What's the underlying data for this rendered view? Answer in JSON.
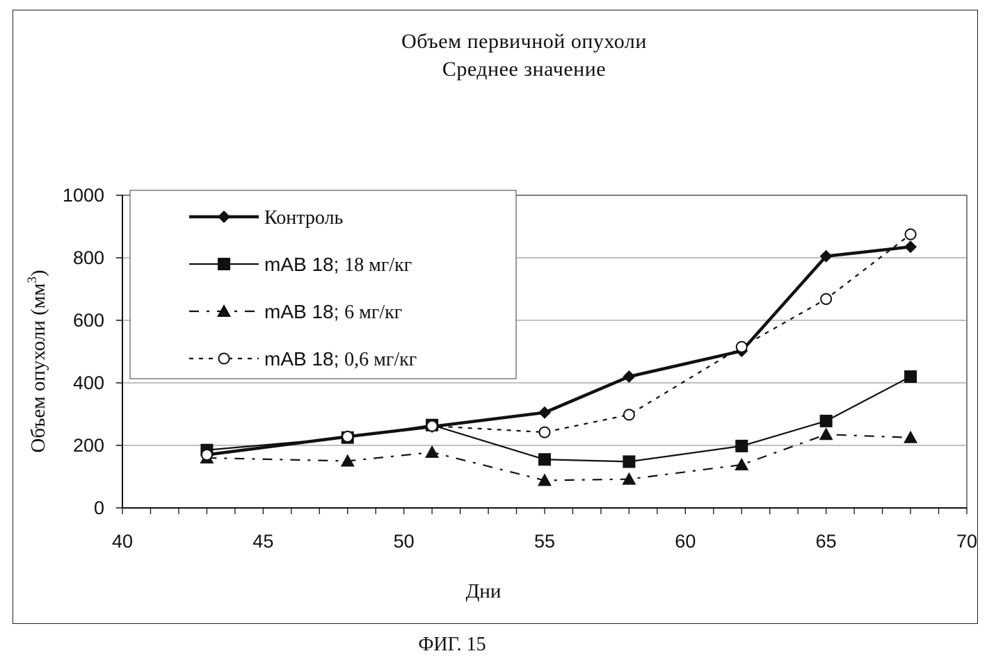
{
  "chart_data": {
    "type": "line",
    "title_lines": [
      "Объем первичной опухоли",
      "Среднее значение"
    ],
    "xlabel": "Дни",
    "ylabel": "Объем опухоли (мм³)",
    "ylabel_main": "Объем опухоли (мм",
    "ylabel_sup": "3",
    "ylabel_close": ")",
    "xlim": [
      40,
      70
    ],
    "ylim": [
      0,
      1000
    ],
    "xticks": [
      40,
      45,
      50,
      55,
      60,
      65,
      70
    ],
    "yticks": [
      0,
      200,
      400,
      600,
      800,
      1000
    ],
    "grid": "horizontal",
    "legend_position": "top-left",
    "series": [
      {
        "name": "Контроль",
        "prefix": "",
        "dose": "Контроль",
        "style": "thick-solid",
        "marker": "diamond",
        "x": [
          43,
          48,
          51,
          55,
          58,
          62,
          65,
          68
        ],
        "y": [
          170,
          228,
          260,
          305,
          420,
          502,
          805,
          835
        ]
      },
      {
        "name": "mAB 18; 18 мг/кг",
        "prefix": "mAB 18;",
        "dose": "18 мг/кг",
        "style": "solid",
        "marker": "square",
        "x": [
          43,
          48,
          51,
          55,
          58,
          62,
          65,
          68
        ],
        "y": [
          185,
          225,
          265,
          155,
          148,
          198,
          278,
          420
        ]
      },
      {
        "name": "mAB 18; 6 мг/кг",
        "prefix": "mAB 18;",
        "dose": "6 мг/кг",
        "style": "dash",
        "marker": "triangle",
        "x": [
          43,
          48,
          51,
          55,
          58,
          62,
          65,
          68
        ],
        "y": [
          160,
          150,
          178,
          88,
          92,
          138,
          235,
          225
        ]
      },
      {
        "name": "mAB 18; 0,6 мг/кг",
        "prefix": "mAB 18;",
        "dose": "0,6 мг/кг",
        "style": "dot",
        "marker": "circle",
        "x": [
          43,
          48,
          51,
          55,
          58,
          62,
          65,
          68
        ],
        "y": [
          170,
          228,
          262,
          242,
          298,
          515,
          668,
          875
        ]
      }
    ]
  },
  "caption": "ФИГ. 15",
  "colors": {
    "line": "#111111",
    "grid": "#9a9a9a",
    "frame": "#222222"
  }
}
